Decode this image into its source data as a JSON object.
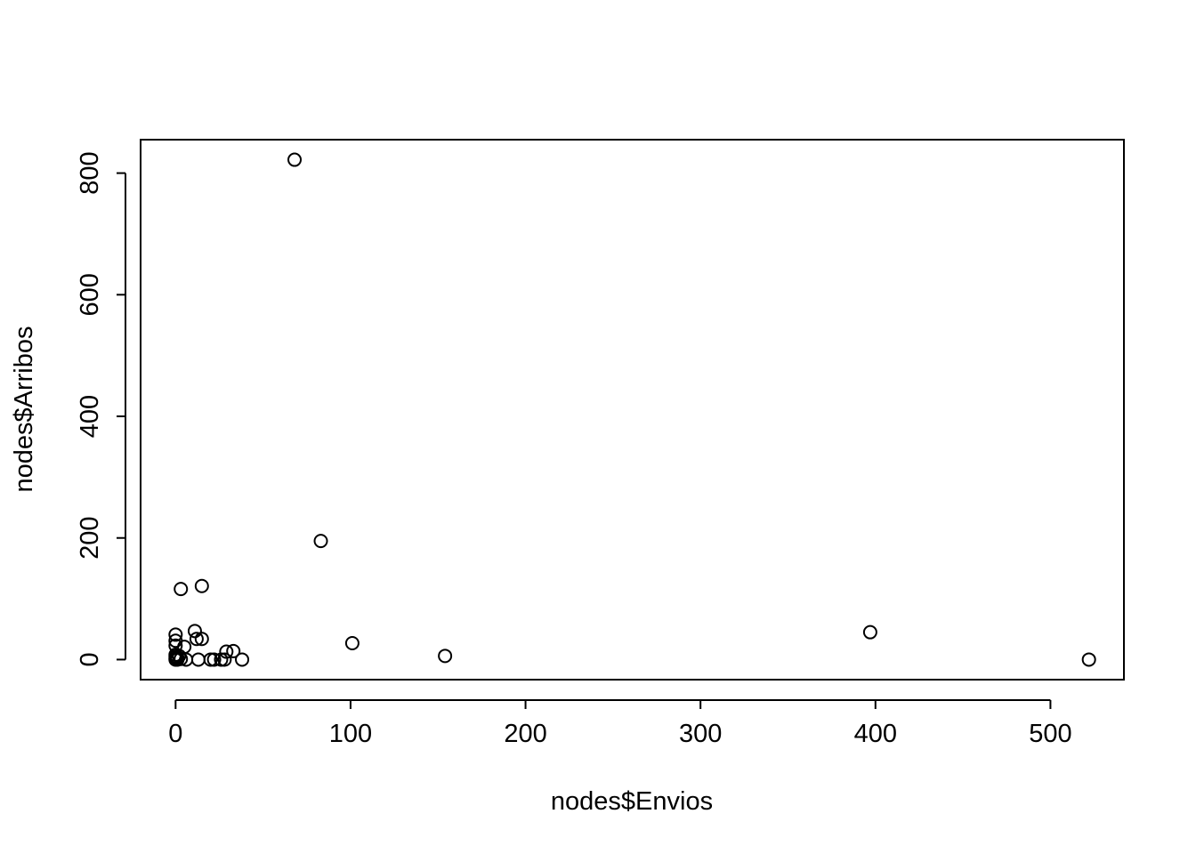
{
  "chart_data": {
    "type": "scatter",
    "title": "",
    "xlabel": "nodes$Envios",
    "ylabel": "nodes$Arribos",
    "xlim": [
      -20,
      542
    ],
    "ylim": [
      -33,
      855
    ],
    "xticks": [
      0,
      100,
      200,
      300,
      400,
      500
    ],
    "yticks": [
      0,
      200,
      400,
      600,
      800
    ],
    "xtick_labels": [
      "0",
      "100",
      "200",
      "300",
      "400",
      "500"
    ],
    "ytick_labels": [
      "0",
      "200",
      "400",
      "600",
      "800"
    ],
    "grid": false,
    "legend": "none",
    "marker": "open-circle",
    "points": [
      {
        "x": 68,
        "y": 822
      },
      {
        "x": 83,
        "y": 195
      },
      {
        "x": 3,
        "y": 116
      },
      {
        "x": 15,
        "y": 121
      },
      {
        "x": 11,
        "y": 47
      },
      {
        "x": 12,
        "y": 34
      },
      {
        "x": 15,
        "y": 34
      },
      {
        "x": 0,
        "y": 41
      },
      {
        "x": 0,
        "y": 31
      },
      {
        "x": 0,
        "y": 23
      },
      {
        "x": 5,
        "y": 21
      },
      {
        "x": 0,
        "y": 8
      },
      {
        "x": 0,
        "y": 5
      },
      {
        "x": 1,
        "y": 3
      },
      {
        "x": 2,
        "y": 6
      },
      {
        "x": 0,
        "y": 2
      },
      {
        "x": 0,
        "y": 0
      },
      {
        "x": 1,
        "y": 0
      },
      {
        "x": 3,
        "y": 1
      },
      {
        "x": 6,
        "y": 0
      },
      {
        "x": 13,
        "y": 0
      },
      {
        "x": 20,
        "y": 0
      },
      {
        "x": 22,
        "y": 0
      },
      {
        "x": 26,
        "y": 0
      },
      {
        "x": 28,
        "y": 0
      },
      {
        "x": 29,
        "y": 13
      },
      {
        "x": 33,
        "y": 14
      },
      {
        "x": 38,
        "y": 0
      },
      {
        "x": 101,
        "y": 27
      },
      {
        "x": 154,
        "y": 6
      },
      {
        "x": 397,
        "y": 45
      },
      {
        "x": 522,
        "y": 0
      }
    ]
  }
}
